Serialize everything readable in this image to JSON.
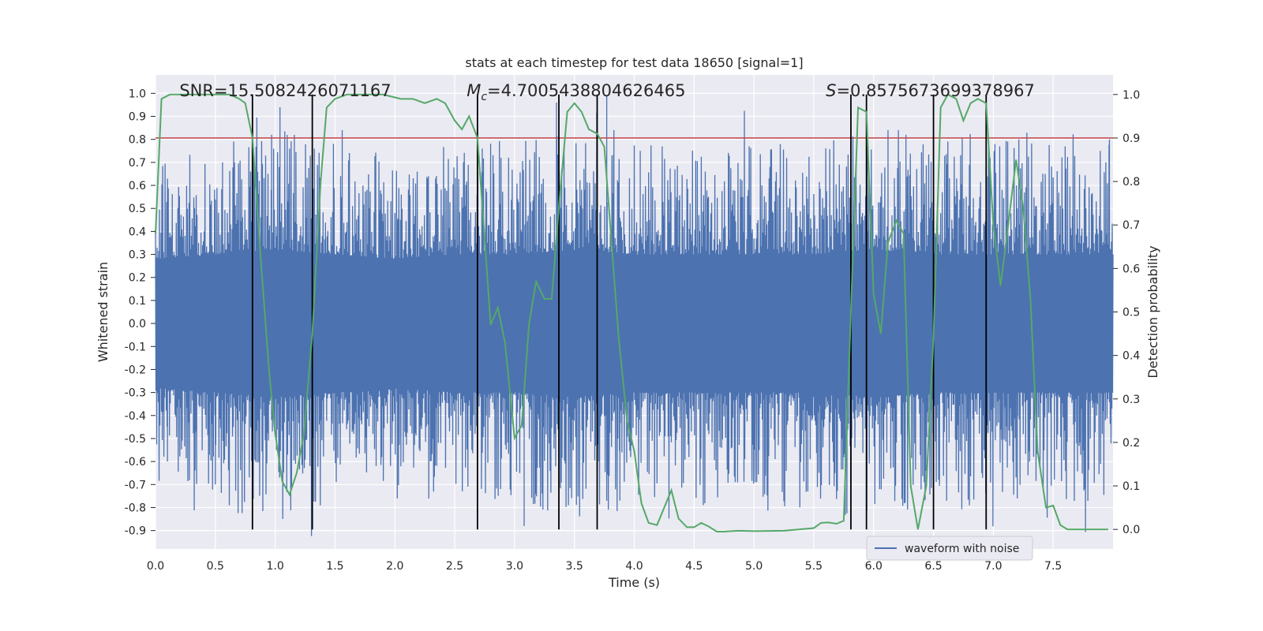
{
  "chart_data": {
    "type": "line",
    "title": "stats at each timestep for test data 18650 [signal=1]",
    "xlabel": "Time (s)",
    "ylabel": "Whitened strain",
    "y2label": "Detection probability",
    "xlim": [
      0.0,
      8.0
    ],
    "ylim": [
      -0.98,
      1.08
    ],
    "y2lim": [
      -0.045,
      1.045
    ],
    "x_ticks": [
      0.0,
      0.5,
      1.0,
      1.5,
      2.0,
      2.5,
      3.0,
      3.5,
      4.0,
      4.5,
      5.0,
      5.5,
      6.0,
      6.5,
      7.0,
      7.5
    ],
    "x_tick_labels": [
      "0.0",
      "0.5",
      "1.0",
      "1.5",
      "2.0",
      "2.5",
      "3.0",
      "3.5",
      "4.0",
      "4.5",
      "5.0",
      "5.5",
      "6.0",
      "6.5",
      "7.0",
      "7.5"
    ],
    "y_ticks": [
      1.0,
      0.9,
      0.8,
      0.7,
      0.6,
      0.5,
      0.4,
      0.3,
      0.2,
      0.1,
      0.0,
      -0.1,
      -0.2,
      -0.3,
      -0.4,
      -0.5,
      -0.6,
      -0.7,
      -0.8,
      -0.9
    ],
    "y_tick_labels": [
      "1.0",
      "0.9",
      "0.8",
      "0.7",
      "0.6",
      "0.5",
      "0.4",
      "0.3",
      "0.2",
      "0.1",
      "0.0",
      "-0.1",
      "-0.2",
      "-0.3",
      "-0.4",
      "-0.5",
      "-0.6",
      "-0.7",
      "-0.8",
      "-0.9"
    ],
    "y2_ticks": [
      1.0,
      0.9,
      0.8,
      0.7,
      0.6,
      0.5,
      0.4,
      0.3,
      0.2,
      0.1,
      0.0
    ],
    "y2_tick_labels": [
      "1.0",
      "0.9",
      "0.8",
      "0.7",
      "0.6",
      "0.5",
      "0.4",
      "0.3",
      "0.2",
      "0.1",
      "0.0"
    ],
    "grid": true,
    "legend": {
      "placement": "lower-right",
      "entries": [
        "waveform with noise"
      ]
    },
    "annotations": [
      {
        "text_prefix": "SNR=",
        "text_value": "15.5082426071167",
        "x": 0.2
      },
      {
        "text_prefix": "M",
        "text_sub": "c",
        "text_value": "=4.7005438804626465",
        "x": 2.6
      },
      {
        "text_prefix": "S",
        "text_value": "=0.8575673699378967",
        "x": 5.6
      }
    ],
    "threshold": {
      "axis": "right",
      "value": 0.9
    },
    "vlines": [
      0.81,
      1.31,
      2.69,
      3.37,
      3.69,
      5.81,
      5.94,
      6.5,
      6.94
    ],
    "vline_range": [
      0.0,
      1.0
    ],
    "series": [
      {
        "name": "waveform with noise",
        "axis": "left",
        "kind": "noise-waveform",
        "envelope": [
          [
            0.0,
            0.28,
            0.42
          ],
          [
            0.5,
            0.3,
            0.5
          ],
          [
            1.0,
            0.32,
            0.55
          ],
          [
            1.5,
            0.3,
            0.48
          ],
          [
            2.0,
            0.28,
            0.45
          ],
          [
            2.5,
            0.3,
            0.5
          ],
          [
            3.0,
            0.3,
            0.5
          ],
          [
            3.5,
            0.32,
            0.55
          ],
          [
            4.0,
            0.3,
            0.5
          ],
          [
            4.5,
            0.3,
            0.5
          ],
          [
            5.0,
            0.3,
            0.5
          ],
          [
            5.5,
            0.3,
            0.5
          ],
          [
            6.0,
            0.32,
            0.55
          ],
          [
            6.5,
            0.3,
            0.5
          ],
          [
            7.0,
            0.3,
            0.52
          ],
          [
            7.5,
            0.3,
            0.48
          ],
          [
            8.0,
            0.3,
            0.5
          ]
        ],
        "peaks": [
          [
            0.56,
            0.7
          ],
          [
            0.66,
            0.7
          ],
          [
            0.82,
            0.76
          ],
          [
            0.97,
            0.82
          ],
          [
            1.04,
            0.94
          ],
          [
            1.16,
            0.82
          ],
          [
            1.56,
            0.84
          ],
          [
            2.73,
            0.76
          ],
          [
            2.95,
            0.72
          ],
          [
            3.08,
            -0.88
          ],
          [
            3.35,
            0.96
          ],
          [
            3.77,
            0.99
          ],
          [
            3.83,
            0.84
          ],
          [
            3.88,
            -0.77
          ],
          [
            2.02,
            -0.76
          ],
          [
            0.5,
            -0.7
          ],
          [
            5.45,
            -0.73
          ],
          [
            6.12,
            0.84
          ],
          [
            6.27,
            0.82
          ],
          [
            6.05,
            -0.72
          ],
          [
            6.8,
            -0.79
          ],
          [
            7.2,
            -0.76
          ],
          [
            7.97,
            0.8
          ],
          [
            7.6,
            0.77
          ],
          [
            4.05,
            0.75
          ],
          [
            0.1,
            -0.6
          ]
        ]
      },
      {
        "name": "",
        "axis": "right",
        "kind": "probability",
        "x": [
          0.0,
          0.05,
          0.12,
          0.3,
          0.5,
          0.62,
          0.7,
          0.75,
          0.81,
          0.88,
          0.95,
          1.0,
          1.06,
          1.12,
          1.18,
          1.24,
          1.31,
          1.38,
          1.43,
          1.5,
          1.6,
          1.75,
          1.9,
          2.05,
          2.15,
          2.25,
          2.35,
          2.42,
          2.5,
          2.56,
          2.62,
          2.69,
          2.75,
          2.8,
          2.86,
          2.92,
          3.0,
          3.06,
          3.12,
          3.18,
          3.25,
          3.31,
          3.37,
          3.44,
          3.5,
          3.56,
          3.62,
          3.69,
          3.75,
          3.81,
          3.87,
          3.94,
          4.0,
          4.06,
          4.12,
          4.19,
          4.25,
          4.31,
          4.37,
          4.44,
          4.5,
          4.56,
          4.62,
          4.69,
          4.75,
          4.81,
          4.87,
          5.0,
          5.25,
          5.5,
          5.56,
          5.62,
          5.69,
          5.75,
          5.81,
          5.87,
          5.94,
          6.0,
          6.06,
          6.12,
          6.19,
          6.25,
          6.31,
          6.37,
          6.44,
          6.5,
          6.56,
          6.62,
          6.69,
          6.75,
          6.81,
          6.87,
          6.94,
          7.0,
          7.06,
          7.12,
          7.19,
          7.25,
          7.31,
          7.37,
          7.44,
          7.5,
          7.56,
          7.62,
          7.75,
          7.96
        ],
        "values": [
          0.68,
          0.99,
          1.0,
          1.0,
          1.0,
          1.0,
          0.99,
          0.98,
          0.9,
          0.62,
          0.36,
          0.22,
          0.11,
          0.08,
          0.13,
          0.22,
          0.45,
          0.8,
          0.97,
          0.99,
          1.0,
          1.0,
          1.0,
          0.99,
          0.99,
          0.98,
          0.99,
          0.98,
          0.94,
          0.92,
          0.95,
          0.9,
          0.67,
          0.47,
          0.51,
          0.43,
          0.21,
          0.24,
          0.47,
          0.57,
          0.53,
          0.53,
          0.74,
          0.96,
          0.98,
          0.96,
          0.92,
          0.91,
          0.88,
          0.66,
          0.44,
          0.25,
          0.18,
          0.06,
          0.015,
          0.01,
          0.05,
          0.09,
          0.025,
          0.005,
          0.005,
          0.015,
          0.007,
          -0.005,
          -0.005,
          -0.004,
          -0.003,
          -0.004,
          -0.003,
          0.003,
          0.015,
          0.016,
          0.013,
          0.02,
          0.5,
          0.97,
          0.96,
          0.54,
          0.45,
          0.66,
          0.71,
          0.68,
          0.1,
          0.0,
          0.1,
          0.44,
          0.97,
          1.0,
          0.99,
          0.94,
          0.98,
          0.99,
          0.98,
          0.7,
          0.56,
          0.69,
          0.85,
          0.74,
          0.53,
          0.18,
          0.05,
          0.055,
          0.01,
          0.0,
          0.0,
          0.0
        ]
      }
    ]
  }
}
